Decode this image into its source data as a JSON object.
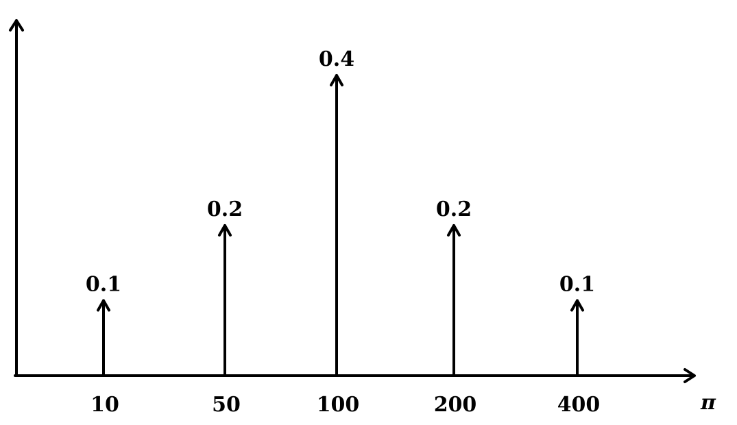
{
  "chart_data": {
    "type": "bar",
    "categories": [
      "10",
      "50",
      "100",
      "200",
      "400"
    ],
    "values": [
      0.1,
      0.2,
      0.4,
      0.2,
      0.1
    ],
    "value_labels": [
      "0.1",
      "0.2",
      "0.4",
      "0.2",
      "0.1"
    ],
    "xlabel": "π",
    "ylabel": "",
    "title": "",
    "ylim": [
      0,
      0.4
    ],
    "grid": false,
    "legend": "none"
  }
}
